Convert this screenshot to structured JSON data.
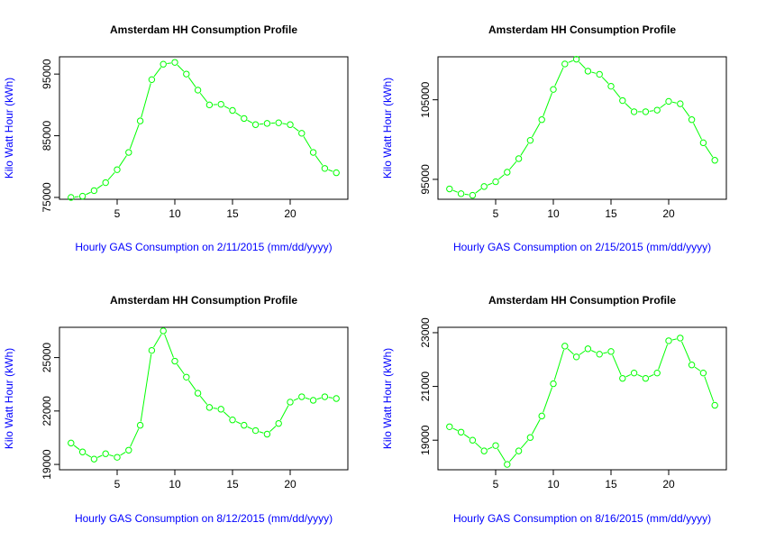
{
  "figure": {
    "background": "#ffffff",
    "layout": "2x2"
  },
  "chart_data": [
    {
      "type": "line",
      "title": "Amsterdam HH Consumption Profile",
      "xlabel": "Hourly GAS Consumption on 2/11/2015 (mm/dd/yyyy)",
      "ylabel": "Kilo Watt Hour (kWh)",
      "color": "#00ff00",
      "marker": "open-circle",
      "grid": false,
      "xlim": [
        0,
        25
      ],
      "ylim": [
        74700,
        97800
      ],
      "xticks": [
        5,
        10,
        15,
        20
      ],
      "yticks": [
        75000,
        85000,
        95000
      ],
      "x": [
        1,
        2,
        3,
        4,
        5,
        6,
        7,
        8,
        9,
        10,
        11,
        12,
        13,
        14,
        15,
        16,
        17,
        18,
        19,
        20,
        21,
        22,
        23,
        24
      ],
      "values": [
        75000,
        75200,
        76100,
        77400,
        79500,
        82300,
        87400,
        94100,
        96600,
        96900,
        95000,
        92400,
        90000,
        90100,
        89100,
        87800,
        86800,
        87000,
        87100,
        86800,
        85400,
        82300,
        79700,
        79000
      ]
    },
    {
      "type": "line",
      "title": "Amsterdam HH Consumption Profile",
      "xlabel": "Hourly GAS Consumption on 2/15/2015 (mm/dd/yyyy)",
      "ylabel": "Kilo Watt Hour (kWh)",
      "color": "#00ff00",
      "marker": "open-circle",
      "grid": false,
      "xlim": [
        0,
        25
      ],
      "ylim": [
        92500,
        110400
      ],
      "xticks": [
        5,
        10,
        15,
        20
      ],
      "yticks": [
        95000,
        105000
      ],
      "x": [
        1,
        2,
        3,
        4,
        5,
        6,
        7,
        8,
        9,
        10,
        11,
        12,
        13,
        14,
        15,
        16,
        17,
        18,
        19,
        20,
        21,
        22,
        23,
        24
      ],
      "values": [
        93800,
        93200,
        93000,
        94100,
        94700,
        95900,
        97600,
        99900,
        102500,
        106300,
        109500,
        110100,
        108600,
        108200,
        106700,
        104900,
        103500,
        103500,
        103700,
        104800,
        104500,
        102500,
        99600,
        97400
      ]
    },
    {
      "type": "line",
      "title": "Amsterdam HH Consumption Profile",
      "xlabel": "Hourly GAS Consumption on 8/12/2015 (mm/dd/yyyy)",
      "ylabel": "Kilo Watt Hour (kWh)",
      "color": "#00ff00",
      "marker": "open-circle",
      "grid": false,
      "xlim": [
        0,
        25
      ],
      "ylim": [
        18700,
        26700
      ],
      "xticks": [
        5,
        10,
        15,
        20
      ],
      "yticks": [
        19000,
        22000,
        25000
      ],
      "x": [
        1,
        2,
        3,
        4,
        5,
        6,
        7,
        8,
        9,
        10,
        11,
        12,
        13,
        14,
        15,
        16,
        17,
        18,
        19,
        20,
        21,
        22,
        23,
        24
      ],
      "values": [
        20200,
        19700,
        19300,
        19600,
        19400,
        19800,
        21200,
        25400,
        26500,
        24800,
        23900,
        23000,
        22200,
        22100,
        21500,
        21200,
        20900,
        20700,
        21300,
        22500,
        22800,
        22600,
        22800,
        22700
      ]
    },
    {
      "type": "line",
      "title": "Amsterdam HH Consumption Profile",
      "xlabel": "Hourly GAS Consumption on 8/16/2015 (mm/dd/yyyy)",
      "ylabel": "Kilo Watt Hour (kWh)",
      "color": "#00ff00",
      "marker": "open-circle",
      "grid": false,
      "xlim": [
        0,
        25
      ],
      "ylim": [
        17900,
        23200
      ],
      "xticks": [
        5,
        10,
        15,
        20
      ],
      "yticks": [
        19000,
        21000,
        23000
      ],
      "x": [
        1,
        2,
        3,
        4,
        5,
        6,
        7,
        8,
        9,
        10,
        11,
        12,
        13,
        14,
        15,
        16,
        17,
        18,
        19,
        20,
        21,
        22,
        23,
        24
      ],
      "values": [
        19500,
        19300,
        19000,
        18600,
        18800,
        18100,
        18600,
        19100,
        19900,
        21100,
        22500,
        22100,
        22400,
        22200,
        22300,
        21300,
        21500,
        21300,
        21500,
        22700,
        22800,
        21800,
        21500,
        20300
      ]
    }
  ]
}
